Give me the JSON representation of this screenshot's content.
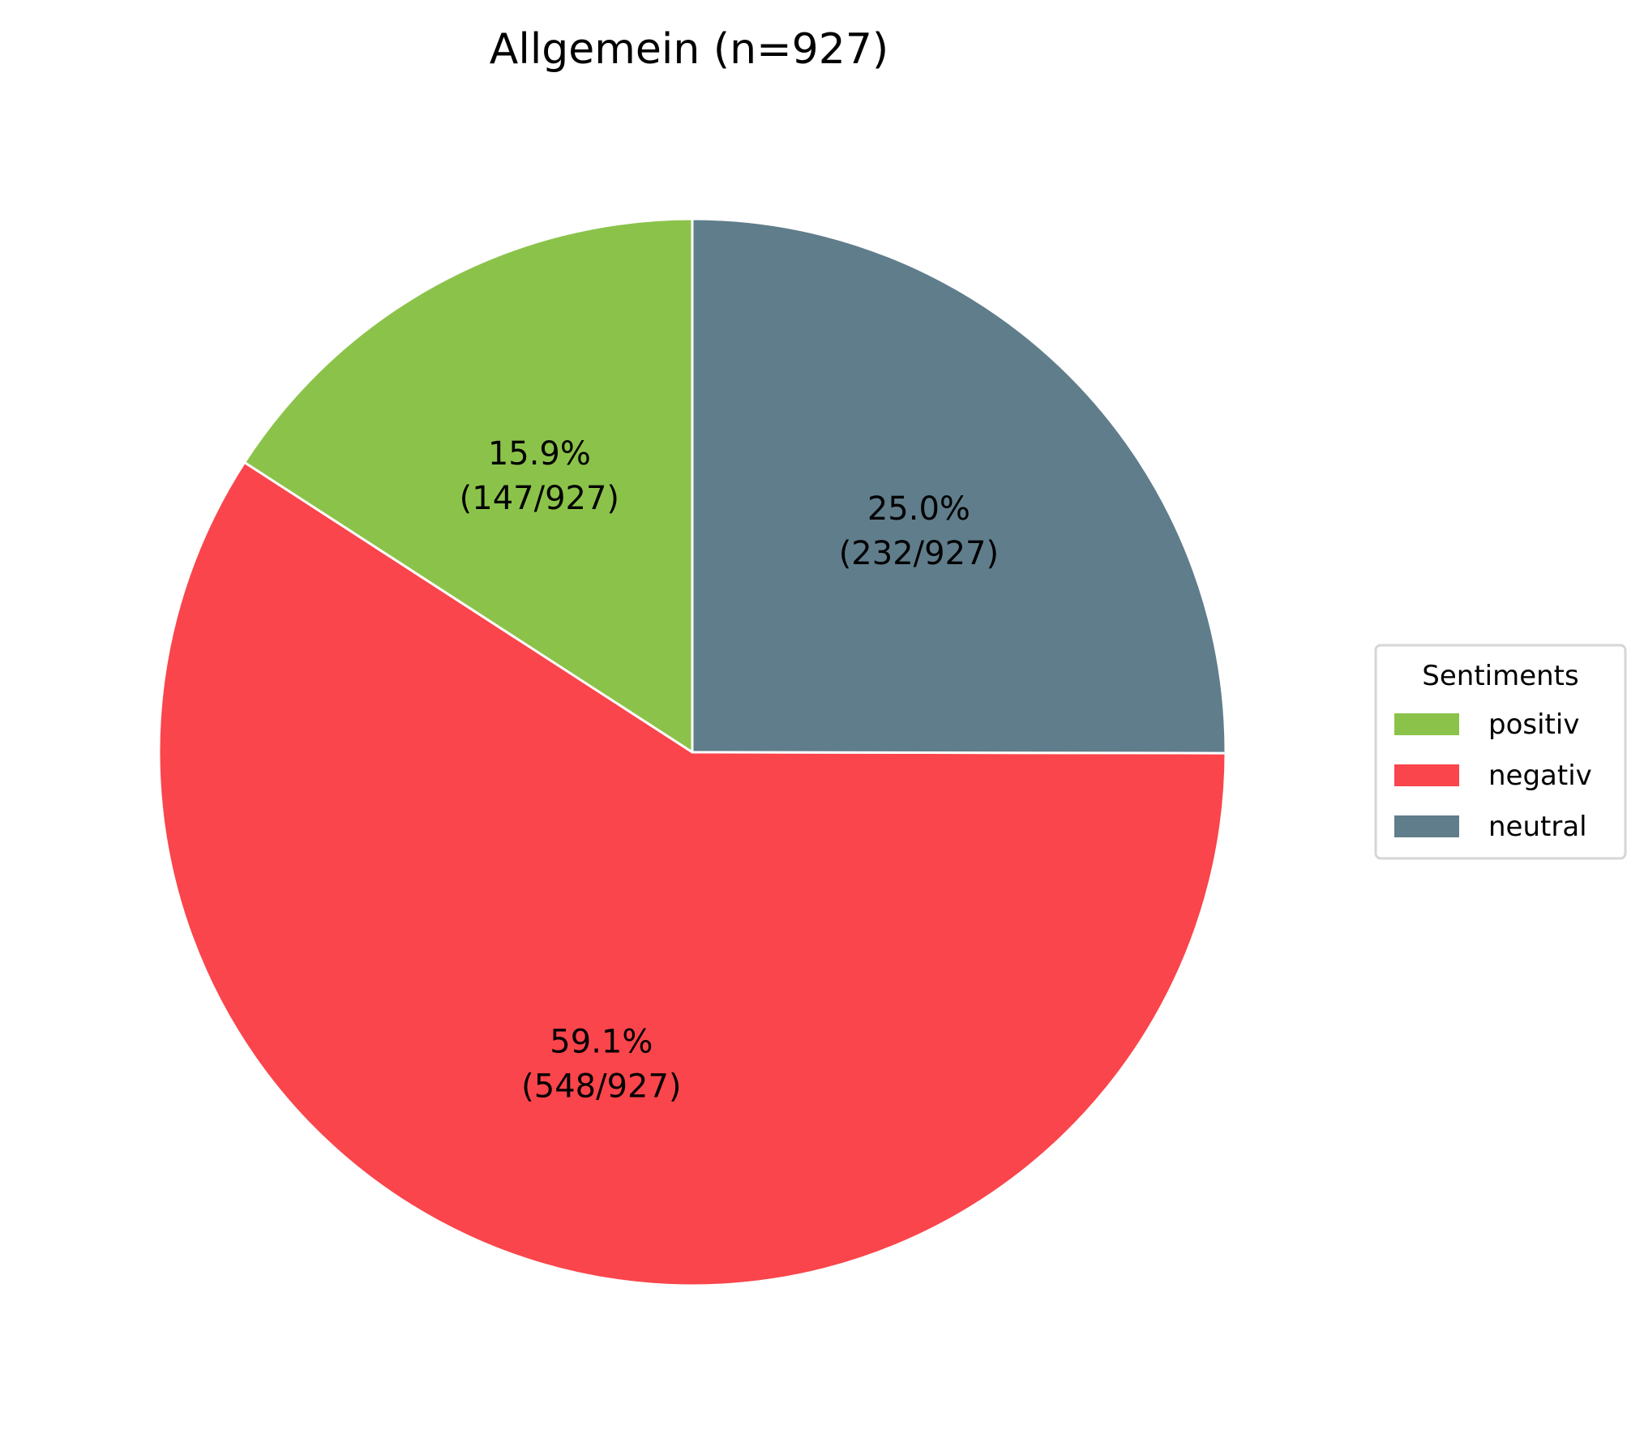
{
  "chart_data": {
    "type": "pie",
    "title": "Allgemein (n=927)",
    "total": 927,
    "slices": [
      {
        "name": "positiv",
        "value": 147,
        "percent_label": "15.9%",
        "count_label": "(147/927)",
        "color": "#8bc34a"
      },
      {
        "name": "negativ",
        "value": 548,
        "percent_label": "59.1%",
        "count_label": "(548/927)",
        "color": "#f9454b"
      },
      {
        "name": "neutral",
        "value": 232,
        "percent_label": "25.0%",
        "count_label": "(232/927)",
        "color": "#607d8b"
      }
    ],
    "start_angle_deg": 90,
    "direction": "counterclockwise",
    "legend": {
      "title": "Sentiments",
      "placement": "center-right"
    }
  }
}
